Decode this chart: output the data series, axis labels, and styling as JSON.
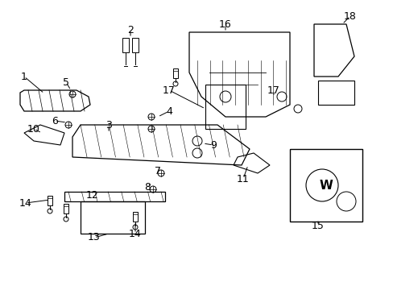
{
  "background_color": "#ffffff",
  "line_color": "#000000",
  "text_color": "#000000",
  "font_size": 9,
  "label_data": [
    [
      "1",
      30,
      265,
      55,
      244
    ],
    [
      "2",
      162,
      323,
      162,
      313
    ],
    [
      "3",
      135,
      205,
      135,
      195
    ],
    [
      "4",
      210,
      222,
      196,
      215
    ],
    [
      "5",
      82,
      258,
      88,
      248
    ],
    [
      "6",
      68,
      210,
      83,
      208
    ],
    [
      "7",
      196,
      148,
      200,
      152
    ],
    [
      "8",
      183,
      128,
      188,
      133
    ],
    [
      "9",
      265,
      180,
      252,
      182
    ],
    [
      "10",
      42,
      200,
      52,
      195
    ],
    [
      "11",
      302,
      138,
      308,
      155
    ],
    [
      "12",
      115,
      118,
      115,
      122
    ],
    [
      "13",
      117,
      65,
      135,
      70
    ],
    [
      "14",
      32,
      108,
      62,
      112
    ],
    [
      "14",
      168,
      70,
      168,
      85
    ],
    [
      "15",
      395,
      80,
      395,
      85
    ],
    [
      "16",
      280,
      330,
      280,
      320
    ],
    [
      "17",
      210,
      248,
      255,
      225
    ],
    [
      "17",
      340,
      248,
      340,
      240
    ],
    [
      "18",
      435,
      340,
      425,
      330
    ]
  ]
}
